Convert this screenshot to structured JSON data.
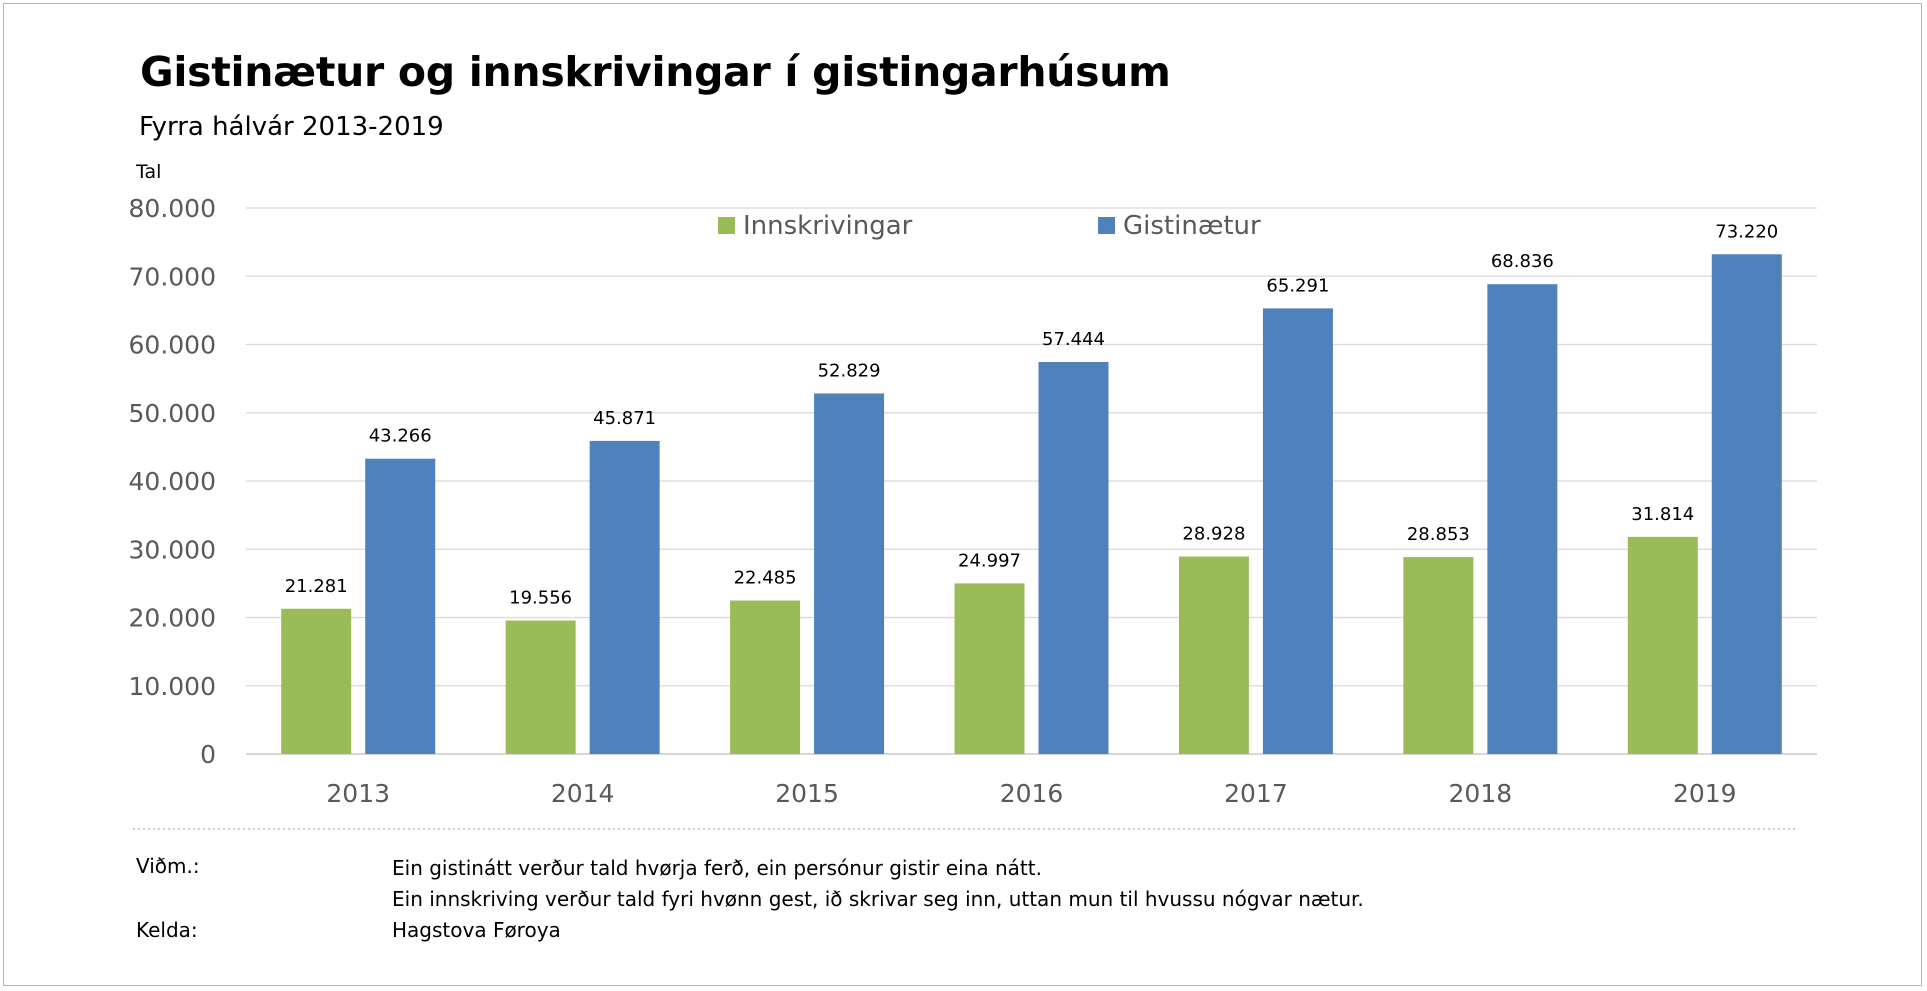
{
  "title": "Gistinætur og innskrivingar í gistingarhúsum",
  "subtitle": "Fyrra hálvár 2013-2019",
  "unit_label": "Tal",
  "notes": {
    "label": "Viðm.:",
    "lines": [
      "Ein gistinátt verður tald hvørja ferð, ein persónur gistir eina nátt.",
      "Ein innskriving verður tald fyri hvønn gest, ið skrivar seg inn, uttan mun til hvussu nógvar nætur."
    ]
  },
  "source": {
    "label": "Kelda:",
    "value": "Hagstova Føroya"
  },
  "chart_data": {
    "type": "bar",
    "categories": [
      "2013",
      "2014",
      "2015",
      "2016",
      "2017",
      "2018",
      "2019"
    ],
    "series": [
      {
        "name": "Innskrivingar",
        "color": "#9bbb59",
        "values": [
          21281,
          19556,
          22485,
          24997,
          28928,
          28853,
          31814
        ],
        "labels": [
          "21.281",
          "19.556",
          "22.485",
          "24.997",
          "28.928",
          "28.853",
          "31.814"
        ]
      },
      {
        "name": "Gistinætur",
        "color": "#4f81bd",
        "values": [
          43266,
          45871,
          52829,
          57444,
          65291,
          68836,
          73220
        ],
        "labels": [
          "43.266",
          "45.871",
          "52.829",
          "57.444",
          "65.291",
          "68.836",
          "73.220"
        ]
      }
    ],
    "ylim": [
      0,
      80000
    ],
    "yticks": [
      0,
      10000,
      20000,
      30000,
      40000,
      50000,
      60000,
      70000,
      80000
    ],
    "ytick_labels": [
      "0",
      "10.000",
      "20.000",
      "30.000",
      "40.000",
      "50.000",
      "60.000",
      "70.000",
      "80.000"
    ],
    "grid": true,
    "legend_position": "top-center"
  }
}
